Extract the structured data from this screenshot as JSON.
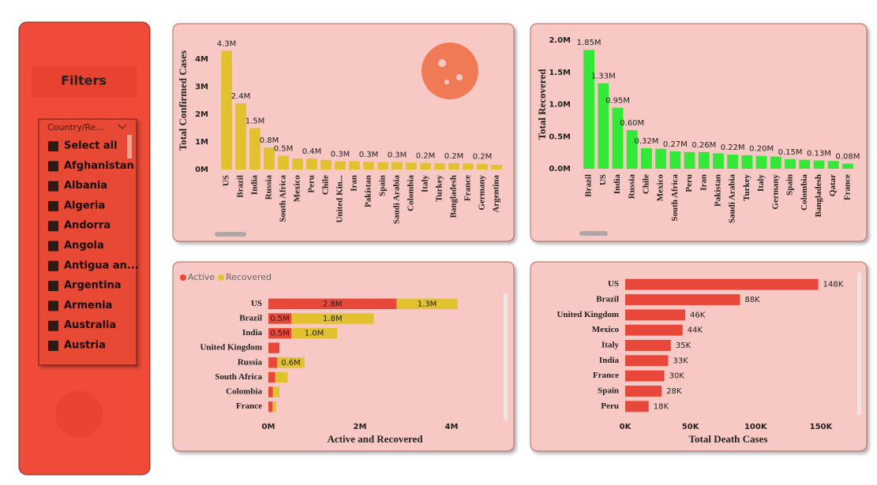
{
  "filters": {
    "title": "Filters",
    "dropdown": "Country/Re...",
    "items": [
      "Select all",
      "Afghanistan",
      "Albania",
      "Algeria",
      "Andorra",
      "Angola",
      "Antigua an...",
      "Argentina",
      "Armenia",
      "Australia",
      "Austria"
    ]
  },
  "chart_data": [
    {
      "type": "bar",
      "orientation": "vertical",
      "y_label": "Total Confirmed Cases",
      "color": "#e2c12f",
      "categories": [
        "US",
        "Brazil",
        "India",
        "Russia",
        "South Africa",
        "Mexico",
        "Peru",
        "Chile",
        "United Kin...",
        "Iran",
        "Pakistan",
        "Spain",
        "Saudi Arabia",
        "Colombia",
        "Italy",
        "Turkey",
        "Bangladesh",
        "France",
        "Germany",
        "Argentina"
      ],
      "values": [
        4300000,
        2400000,
        1500000,
        800000,
        500000,
        400000,
        400000,
        350000,
        300000,
        300000,
        280000,
        270000,
        270000,
        250000,
        240000,
        230000,
        230000,
        220000,
        210000,
        170000
      ],
      "value_labels": [
        "4.3M",
        "2.4M",
        "1.5M",
        "0.8M",
        "0.5M",
        null,
        "0.4M",
        null,
        "0.3M",
        null,
        "0.3M",
        null,
        "0.3M",
        null,
        "0.2M",
        null,
        "0.2M",
        null,
        "0.2M",
        null
      ],
      "ylim": [
        0,
        5000000
      ],
      "yticks": [
        {
          "value": 0,
          "label": "0M"
        },
        {
          "value": 1000000,
          "label": "1M"
        },
        {
          "value": 2000000,
          "label": "2M"
        },
        {
          "value": 3000000,
          "label": "3M"
        },
        {
          "value": 4000000,
          "label": "4M"
        }
      ]
    },
    {
      "type": "bar",
      "orientation": "vertical",
      "y_label": "Total Recovered",
      "color": "#33e836",
      "categories": [
        "Brazil",
        "US",
        "India",
        "Russia",
        "Chile",
        "Mexico",
        "South Africa",
        "Peru",
        "Iran",
        "Pakistan",
        "Saudi Arabia",
        "Turkey",
        "Italy",
        "Germany",
        "Spain",
        "Colombia",
        "Bangladesh",
        "Qatar",
        "France"
      ],
      "values": [
        1850000,
        1330000,
        950000,
        600000,
        320000,
        310000,
        270000,
        260000,
        260000,
        240000,
        220000,
        210000,
        200000,
        190000,
        150000,
        140000,
        130000,
        120000,
        80000
      ],
      "value_labels": [
        "1.85M",
        "1.33M",
        "0.95M",
        "0.60M",
        "0.32M",
        null,
        "0.27M",
        null,
        "0.26M",
        null,
        "0.22M",
        null,
        "0.20M",
        null,
        "0.15M",
        null,
        "0.13M",
        null,
        "0.08M"
      ],
      "ylim": [
        0,
        2000000
      ],
      "yticks": [
        {
          "value": 0,
          "label": "0.0M"
        },
        {
          "value": 500000,
          "label": "0.5M"
        },
        {
          "value": 1000000,
          "label": "1.0M"
        },
        {
          "value": 1500000,
          "label": "1.5M"
        },
        {
          "value": 2000000,
          "label": "2.0M"
        }
      ]
    },
    {
      "type": "bar",
      "orientation": "horizontal",
      "stacked": true,
      "x_label": "Active and Recovered",
      "categories": [
        "US",
        "Brazil",
        "India",
        "United Kingdom",
        "Russia",
        "South Africa",
        "Colombia",
        "France"
      ],
      "series": [
        {
          "name": "Active",
          "color": "#e8483a",
          "values": [
            2800000,
            500000,
            500000,
            240000,
            190000,
            150000,
            100000,
            90000
          ],
          "value_labels": [
            "2.8M",
            "0.5M",
            "0.5M",
            null,
            null,
            null,
            null,
            null
          ]
        },
        {
          "name": "Recovered",
          "color": "#e2c12f",
          "values": [
            1330000,
            1800000,
            1000000,
            null,
            600000,
            270000,
            140000,
            80000
          ],
          "value_labels": [
            "1.3M",
            "1.8M",
            "1.0M",
            null,
            "0.6M",
            null,
            null,
            null
          ]
        }
      ],
      "xlim": [
        0,
        5000000
      ],
      "xticks": [
        {
          "value": 0,
          "label": "0M"
        },
        {
          "value": 2000000,
          "label": "2M"
        },
        {
          "value": 4000000,
          "label": "4M"
        }
      ]
    },
    {
      "type": "bar",
      "orientation": "horizontal",
      "x_label": "Total Death Cases",
      "color": "#e8483a",
      "categories": [
        "US",
        "Brazil",
        "United Kingdom",
        "Mexico",
        "Italy",
        "India",
        "France",
        "Spain",
        "Peru"
      ],
      "values": [
        148000,
        88000,
        46000,
        44000,
        35000,
        33000,
        30000,
        28000,
        18000
      ],
      "value_labels": [
        "148K",
        "88K",
        "46K",
        "44K",
        "35K",
        "33K",
        "30K",
        "28K",
        "18K"
      ],
      "xlim": [
        0,
        170000
      ],
      "xticks": [
        {
          "value": 0,
          "label": "0K"
        },
        {
          "value": 50000,
          "label": "50K"
        },
        {
          "value": 100000,
          "label": "100K"
        },
        {
          "value": 150000,
          "label": "150K"
        }
      ]
    }
  ]
}
